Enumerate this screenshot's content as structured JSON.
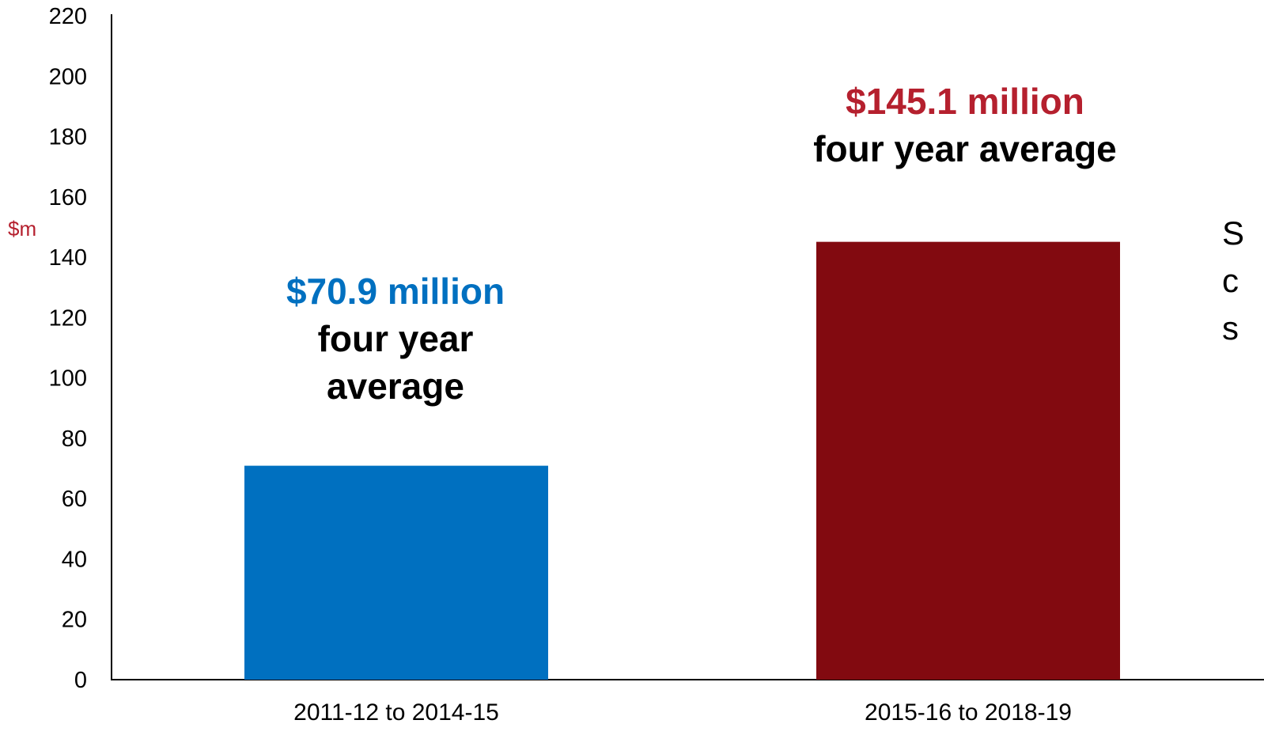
{
  "chart_data": {
    "type": "bar",
    "ylabel": "$m",
    "ylim": [
      0,
      220
    ],
    "ytick_step": 20,
    "categories": [
      "2011-12 to 2014-15",
      "2015-16 to 2018-19"
    ],
    "values": [
      70.9,
      145.1
    ],
    "colors": [
      "#0070c0",
      "#820a10"
    ],
    "grid": false,
    "annotations": [
      {
        "highlight": "$70.9 million",
        "rest": "four year average",
        "color": "#0070c0"
      },
      {
        "highlight": "$145.1 million",
        "rest": "four year average",
        "color": "#b5202e"
      }
    ],
    "ylabel_color": "#b5202e"
  },
  "side_text": "S\nc\ns"
}
